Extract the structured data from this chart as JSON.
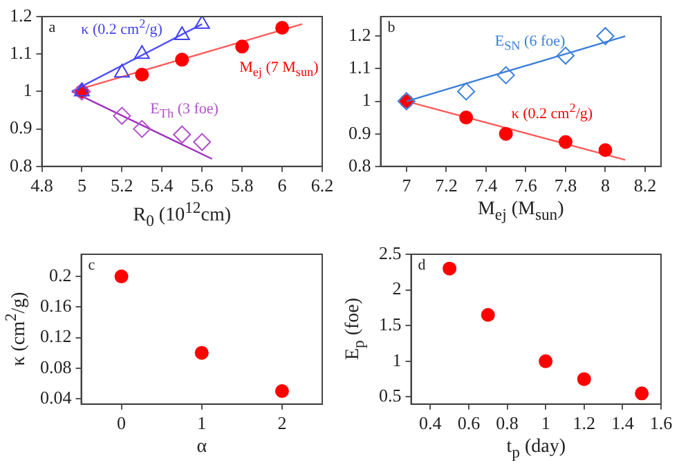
{
  "chart_data": [
    {
      "type": "scatter",
      "xlabel": "R$_{0}$ (10$^{12}$cm)",
      "xlim": [
        4.8,
        6.2
      ],
      "xticks": [
        4.8,
        5,
        5.2,
        5.4,
        5.6,
        5.8,
        6,
        6.2
      ],
      "ylim": [
        0.8,
        1.2
      ],
      "yticks": [
        0.8,
        0.9,
        1,
        1.1,
        1.2
      ],
      "legend": false,
      "annotations": [
        "a"
      ],
      "series": [
        {
          "type": "scatter",
          "name": "κ (0.2 cm$^{2}$/g)",
          "color": "#4040f0",
          "marker": "triangle",
          "x": [
            5,
            5.2,
            5.3,
            5.5,
            5.6
          ],
          "values": [
            1.0,
            1.05,
            1.1,
            1.15,
            1.18
          ]
        },
        {
          "type": "line",
          "color": "#5050ff",
          "marker": "none",
          "x": [
            4.95,
            5.6
          ],
          "values": [
            1.0,
            1.18
          ]
        },
        {
          "type": "scatter",
          "name": "M$_{ej}$ (7 M$_{sun}$)",
          "color": "#ff0000",
          "marker": "circle",
          "x": [
            5,
            5.3,
            5.5,
            5.8,
            6.0
          ],
          "values": [
            1.0,
            1.045,
            1.085,
            1.12,
            1.17
          ]
        },
        {
          "type": "line",
          "color": "#ff5a5a",
          "marker": "none",
          "x": [
            4.95,
            6.1
          ],
          "values": [
            1.0,
            1.18
          ]
        },
        {
          "type": "scatter",
          "name": "E$_{Th}$ (3 foe)",
          "color": "#b050c8",
          "marker": "diamond",
          "x": [
            5,
            5.2,
            5.3,
            5.5,
            5.6
          ],
          "values": [
            1.0,
            0.935,
            0.9,
            0.885,
            0.865
          ]
        },
        {
          "type": "line",
          "color": "#a030c0",
          "marker": "none",
          "x": [
            4.95,
            5.65
          ],
          "values": [
            1.0,
            0.82
          ]
        }
      ]
    },
    {
      "type": "scatter",
      "xlabel": "M$_{ej}$ (M$_{sun}$)",
      "xlim": [
        6.87,
        8.28
      ],
      "xticks": [
        7,
        7.2,
        7.4,
        7.6,
        7.8,
        8,
        8.2
      ],
      "ylim": [
        0.8,
        1.26
      ],
      "yticks": [
        0.8,
        0.9,
        1,
        1.1,
        1.2
      ],
      "legend": false,
      "annotations": [
        "b"
      ],
      "series": [
        {
          "type": "scatter",
          "name": "E$_{SN}$ (6 foe)",
          "color": "#3a7fd8",
          "marker": "diamond",
          "x": [
            7,
            7.3,
            7.5,
            7.8,
            8
          ],
          "values": [
            1.0,
            1.03,
            1.08,
            1.14,
            1.2
          ]
        },
        {
          "type": "line",
          "color": "#3a7fd8",
          "marker": "none",
          "x": [
            7,
            8.1
          ],
          "values": [
            1.0,
            1.2
          ]
        },
        {
          "type": "scatter",
          "name": "κ (0.2 cm$^{2}$/g)",
          "color": "#ff0000",
          "marker": "circle",
          "x": [
            7,
            7.3,
            7.5,
            7.8,
            8
          ],
          "values": [
            1.0,
            0.95,
            0.9,
            0.875,
            0.85
          ]
        },
        {
          "type": "line",
          "color": "#ff5a5a",
          "marker": "none",
          "x": [
            7,
            8.1
          ],
          "values": [
            1.0,
            0.82
          ]
        }
      ]
    },
    {
      "type": "scatter",
      "xlabel": "α",
      "ylabel": "κ (cm$^{2}$/g)",
      "xlim": [
        -0.5,
        2.5
      ],
      "xticks": [
        0,
        1,
        2
      ],
      "ylim": [
        0.033,
        0.229
      ],
      "yticks": [
        0.04,
        0.08,
        0.12,
        0.16,
        0.2
      ],
      "legend": false,
      "annotations": [
        "c"
      ],
      "marker": "circle",
      "color": "#ff0000",
      "x": [
        0,
        1,
        2
      ],
      "values": [
        0.2,
        0.1,
        0.05
      ]
    },
    {
      "type": "scatter",
      "xlabel": "t$_{p}$ (day)",
      "ylabel": "E$_{p}$ (foe)",
      "xlim": [
        0.3,
        1.6
      ],
      "xticks": [
        0.4,
        0.6,
        0.8,
        1,
        1.2,
        1.4,
        1.6
      ],
      "ylim": [
        0.4,
        2.5
      ],
      "yticks": [
        0.5,
        1,
        1.5,
        2,
        2.5
      ],
      "legend": false,
      "annotations": [
        "d"
      ],
      "marker": "circle",
      "color": "#ff0000",
      "x": [
        0.5,
        0.7,
        1.0,
        1.2,
        1.5
      ],
      "values": [
        2.3,
        1.65,
        1.0,
        0.75,
        0.55
      ]
    }
  ]
}
